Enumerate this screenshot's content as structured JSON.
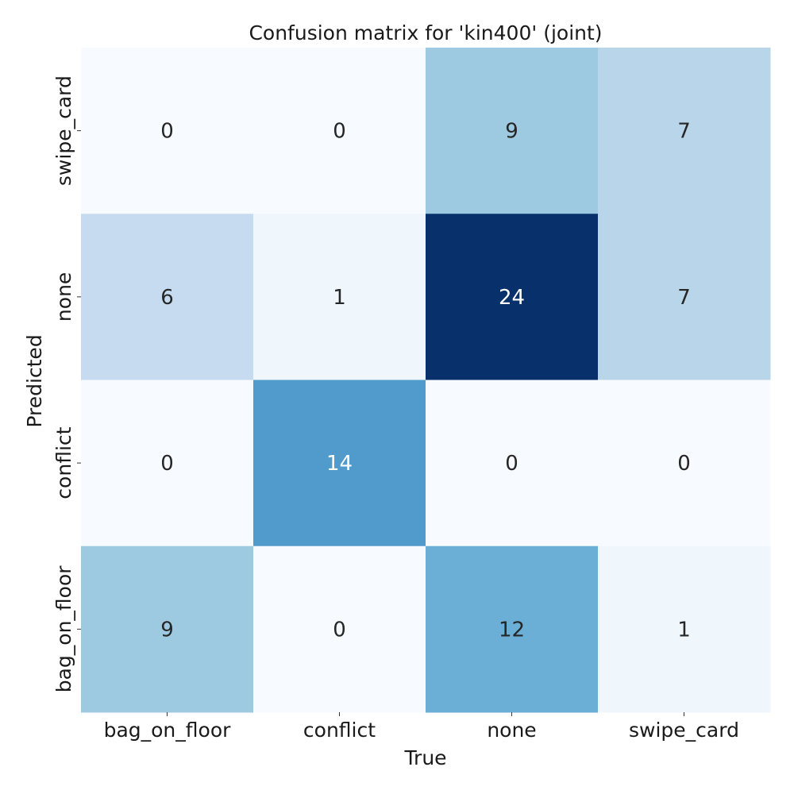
{
  "chart_data": {
    "type": "heatmap",
    "title": "Confusion matrix for 'kin400' (joint)",
    "xlabel": "True",
    "ylabel": "Predicted",
    "x_categories": [
      "bag_on_floor",
      "conflict",
      "none",
      "swipe_card"
    ],
    "y_categories": [
      "swipe_card",
      "none",
      "conflict",
      "bag_on_floor"
    ],
    "values": [
      [
        0,
        0,
        9,
        7
      ],
      [
        6,
        1,
        24,
        7
      ],
      [
        0,
        14,
        0,
        0
      ],
      [
        9,
        0,
        12,
        1
      ]
    ],
    "colormap": "Blues",
    "vmin": 0,
    "vmax": 24,
    "colorbar": false,
    "grid": false
  }
}
